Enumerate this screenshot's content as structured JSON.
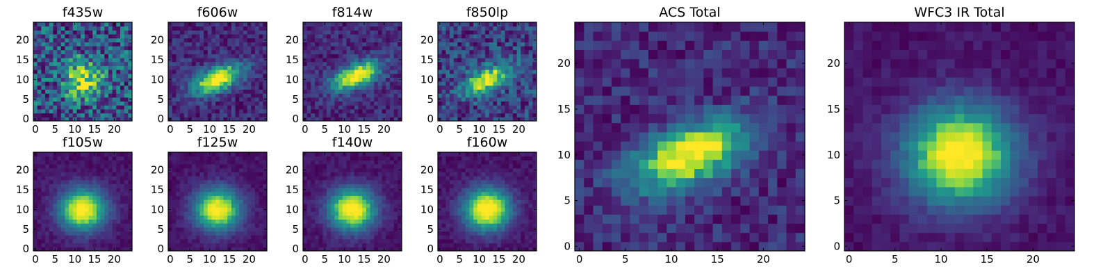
{
  "figure": {
    "description_hidden": false
  },
  "chart_data": [
    {
      "type": "heatmap",
      "title": "f435w",
      "colormap": "viridis",
      "grid_size": 25,
      "xlim": [
        0,
        24
      ],
      "ylim": [
        0,
        24
      ],
      "xticks": [
        "0",
        "5",
        "10",
        "15",
        "20"
      ],
      "yticks": [
        "0",
        "5",
        "10",
        "15",
        "20"
      ],
      "peak": {
        "x": 12,
        "y": 10
      },
      "noise": "high",
      "elongation": "compact",
      "source": "faint"
    },
    {
      "type": "heatmap",
      "title": "f606w",
      "colormap": "viridis",
      "grid_size": 25,
      "xlim": [
        0,
        24
      ],
      "ylim": [
        0,
        24
      ],
      "xticks": [
        "0",
        "5",
        "10",
        "15",
        "20"
      ],
      "yticks": [
        "0",
        "5",
        "10",
        "15",
        "20"
      ],
      "peak": {
        "x": 12,
        "y": 10
      },
      "noise": "medium",
      "elongation": "diagonal"
    },
    {
      "type": "heatmap",
      "title": "f814w",
      "colormap": "viridis",
      "grid_size": 25,
      "xlim": [
        0,
        24
      ],
      "ylim": [
        0,
        24
      ],
      "xticks": [
        "0",
        "5",
        "10",
        "15",
        "20"
      ],
      "yticks": [
        "0",
        "5",
        "10",
        "15",
        "20"
      ],
      "peak": {
        "x": 13,
        "y": 11
      },
      "noise": "medium",
      "elongation": "diagonal"
    },
    {
      "type": "heatmap",
      "title": "f850lp",
      "colormap": "viridis",
      "grid_size": 25,
      "xlim": [
        0,
        24
      ],
      "ylim": [
        0,
        24
      ],
      "xticks": [
        "0",
        "5",
        "10",
        "15",
        "20"
      ],
      "yticks": [
        "0",
        "5",
        "10",
        "15",
        "20"
      ],
      "peak": {
        "x": 12,
        "y": 10
      },
      "noise": "high",
      "elongation": "diagonal"
    },
    {
      "type": "heatmap",
      "title": "f105w",
      "colormap": "viridis",
      "grid_size": 25,
      "xlim": [
        0,
        24
      ],
      "ylim": [
        0,
        24
      ],
      "xticks": [
        "0",
        "5",
        "10",
        "15",
        "20"
      ],
      "yticks": [
        "0",
        "5",
        "10",
        "15",
        "20"
      ],
      "peak": {
        "x": 12,
        "y": 10
      },
      "noise": "low",
      "elongation": "round"
    },
    {
      "type": "heatmap",
      "title": "f125w",
      "colormap": "viridis",
      "grid_size": 25,
      "xlim": [
        0,
        24
      ],
      "ylim": [
        0,
        24
      ],
      "xticks": [
        "0",
        "5",
        "10",
        "15",
        "20"
      ],
      "yticks": [
        "0",
        "5",
        "10",
        "15",
        "20"
      ],
      "peak": {
        "x": 12,
        "y": 10
      },
      "noise": "low",
      "elongation": "round"
    },
    {
      "type": "heatmap",
      "title": "f140w",
      "colormap": "viridis",
      "grid_size": 25,
      "xlim": [
        0,
        24
      ],
      "ylim": [
        0,
        24
      ],
      "xticks": [
        "0",
        "5",
        "10",
        "15",
        "20"
      ],
      "yticks": [
        "0",
        "5",
        "10",
        "15",
        "20"
      ],
      "peak": {
        "x": 12,
        "y": 10
      },
      "noise": "low",
      "elongation": "round"
    },
    {
      "type": "heatmap",
      "title": "f160w",
      "colormap": "viridis",
      "grid_size": 25,
      "xlim": [
        0,
        24
      ],
      "ylim": [
        0,
        24
      ],
      "xticks": [
        "0",
        "5",
        "10",
        "15",
        "20"
      ],
      "yticks": [
        "0",
        "5",
        "10",
        "15",
        "20"
      ],
      "peak": {
        "x": 12,
        "y": 10
      },
      "noise": "low",
      "elongation": "round"
    },
    {
      "type": "heatmap",
      "title": "ACS Total",
      "colormap": "viridis",
      "grid_size": 25,
      "xlim": [
        0,
        24
      ],
      "ylim": [
        0,
        24
      ],
      "xticks": [
        "0",
        "5",
        "10",
        "15",
        "20"
      ],
      "yticks": [
        "0",
        "5",
        "10",
        "15",
        "20"
      ],
      "peak": {
        "x": 12,
        "y": 10
      },
      "noise": "medium",
      "elongation": "diagonal"
    },
    {
      "type": "heatmap",
      "title": "WFC3 IR Total",
      "colormap": "viridis",
      "grid_size": 25,
      "xlim": [
        0,
        24
      ],
      "ylim": [
        0,
        24
      ],
      "xticks": [
        "0",
        "5",
        "10",
        "15",
        "20"
      ],
      "yticks": [
        "0",
        "5",
        "10",
        "15",
        "20"
      ],
      "peak": {
        "x": 12,
        "y": 10
      },
      "noise": "low",
      "elongation": "round"
    }
  ]
}
